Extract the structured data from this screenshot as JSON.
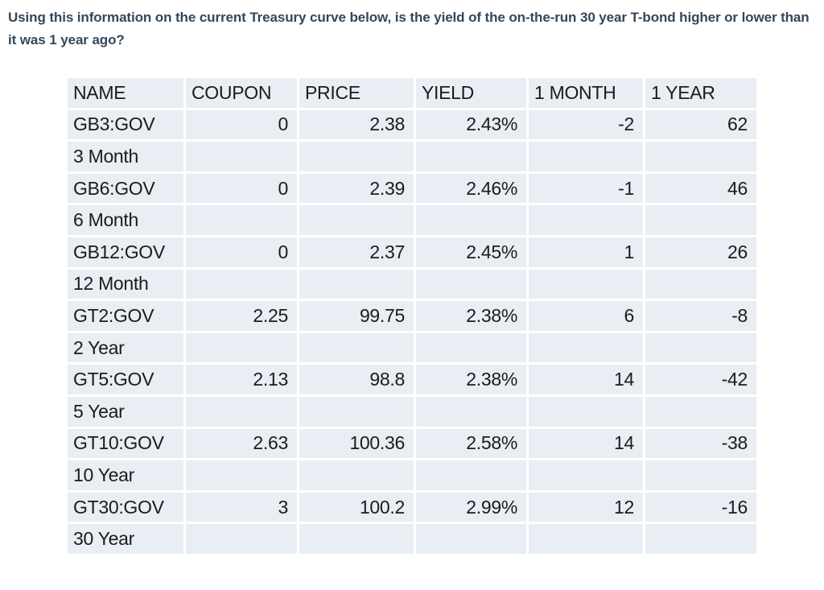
{
  "question": {
    "text": "Using this information on the current Treasury curve below, is the yield of the on-the-run 30 year T-bond higher or lower than it was 1 year ago?"
  },
  "table": {
    "headers": [
      "NAME",
      "COUPON",
      "PRICE",
      "YIELD",
      "1 MONTH",
      "1 YEAR"
    ],
    "rows": [
      [
        "GB3:GOV",
        "0",
        "2.38",
        "2.43%",
        "-2",
        "62"
      ],
      [
        "3 Month",
        "",
        "",
        "",
        "",
        ""
      ],
      [
        "GB6:GOV",
        "0",
        "2.39",
        "2.46%",
        "-1",
        "46"
      ],
      [
        "6 Month",
        "",
        "",
        "",
        "",
        ""
      ],
      [
        "GB12:GOV",
        "0",
        "2.37",
        "2.45%",
        "1",
        "26"
      ],
      [
        "12 Month",
        "",
        "",
        "",
        "",
        ""
      ],
      [
        "GT2:GOV",
        "2.25",
        "99.75",
        "2.38%",
        "6",
        "-8"
      ],
      [
        "2 Year",
        "",
        "",
        "",
        "",
        ""
      ],
      [
        "GT5:GOV",
        "2.13",
        "98.8",
        "2.38%",
        "14",
        "-42"
      ],
      [
        "5 Year",
        "",
        "",
        "",
        "",
        ""
      ],
      [
        "GT10:GOV",
        "2.63",
        "100.36",
        "2.58%",
        "14",
        "-38"
      ],
      [
        "10 Year",
        "",
        "",
        "",
        "",
        ""
      ],
      [
        "GT30:GOV",
        "3",
        "100.2",
        "2.99%",
        "12",
        "-16"
      ],
      [
        "30 Year",
        "",
        "",
        "",
        "",
        ""
      ]
    ]
  },
  "colors": {
    "row_bg": "#e9edf4",
    "cell_text": "#1b1b1b",
    "question_text": "#33475b"
  }
}
